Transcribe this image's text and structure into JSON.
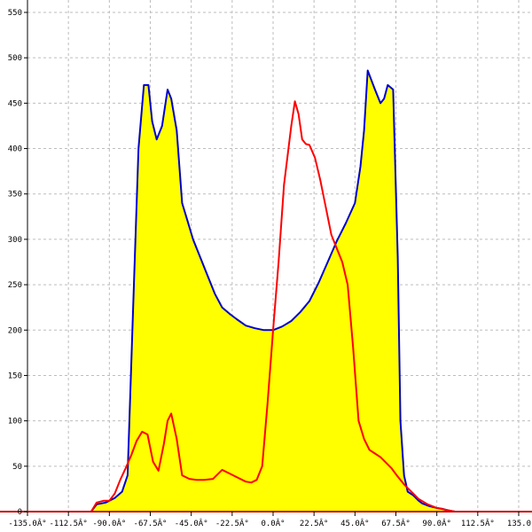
{
  "chart_data": {
    "type": "area",
    "title": "",
    "xlabel": "",
    "ylabel": "",
    "xlim": [
      -135,
      135
    ],
    "ylim": [
      0,
      550
    ],
    "grid": true,
    "x_ticks": [
      -135,
      -112.5,
      -90,
      -67.5,
      -45,
      -22.5,
      0,
      22.5,
      45,
      67.5,
      90,
      112.5,
      135
    ],
    "x_tick_labels": [
      "-135.0Â°",
      "-112.5Â°",
      "-90.0Â°",
      "-67.5Â°",
      "-45.0Â°",
      "-22.5Â°",
      "0.0Â°",
      "22.5Â°",
      "45.0Â°",
      "67.5Â°",
      "90.0Â°",
      "112.5Â°",
      "135.0"
    ],
    "y_ticks": [
      0,
      50,
      100,
      150,
      200,
      250,
      300,
      350,
      400,
      450,
      500,
      550
    ],
    "y_tick_labels": [
      "0",
      "50",
      "100",
      "150",
      "200",
      "250",
      "300",
      "350",
      "400",
      "450",
      "500",
      "550"
    ],
    "series": [
      {
        "color": "#0000cc",
        "fill": "#ffff00",
        "x": [
          -100,
          -97,
          -92,
          -90,
          -87,
          -83,
          -80,
          -77,
          -74,
          -71,
          -68.5,
          -66.5,
          -64,
          -61,
          -58,
          -56,
          -53,
          -50,
          -47,
          -44,
          -40,
          -36,
          -32,
          -28,
          -24,
          -20,
          -15,
          -10,
          -5,
          0,
          5,
          10,
          15,
          20,
          25,
          30,
          35,
          40,
          45,
          48,
          50,
          52,
          56,
          59,
          61,
          63,
          66,
          68.5,
          70,
          72,
          74,
          77,
          80,
          82,
          86,
          90,
          93,
          95,
          97,
          100
        ],
        "y": [
          0,
          8,
          10,
          12,
          15,
          22,
          40,
          220,
          400,
          470,
          470,
          430,
          410,
          425,
          465,
          455,
          420,
          340,
          320,
          300,
          280,
          260,
          240,
          225,
          218,
          212,
          205,
          202,
          200,
          200,
          204,
          210,
          220,
          232,
          252,
          275,
          298,
          318,
          340,
          380,
          420,
          486,
          465,
          450,
          455,
          470,
          465,
          280,
          100,
          40,
          22,
          18,
          12,
          9,
          6,
          4,
          3,
          2,
          1,
          0
        ]
      },
      {
        "color": "#ff0000",
        "x": [
          -100,
          -97,
          -93,
          -90,
          -87,
          -84,
          -81,
          -78,
          -75,
          -72,
          -69,
          -66,
          -63,
          -60,
          -58,
          -56,
          -53,
          -50,
          -46,
          -42,
          -38,
          -33,
          -28,
          -24,
          -20,
          -15,
          -12,
          -9,
          -6,
          -3,
          0,
          3,
          6,
          10,
          12,
          14,
          16,
          18,
          20,
          23,
          26,
          29,
          32,
          35,
          38,
          41,
          44,
          47,
          50,
          53,
          56,
          59,
          62,
          65,
          68,
          72,
          76,
          80,
          85,
          90,
          95,
          100
        ],
        "y": [
          0,
          10,
          12,
          12,
          20,
          35,
          48,
          62,
          78,
          88,
          85,
          55,
          45,
          75,
          100,
          108,
          80,
          40,
          36,
          35,
          35,
          36,
          46,
          42,
          38,
          33,
          32,
          35,
          50,
          120,
          200,
          275,
          360,
          425,
          452,
          438,
          410,
          405,
          404,
          390,
          365,
          335,
          305,
          290,
          275,
          250,
          180,
          100,
          80,
          68,
          64,
          60,
          54,
          48,
          40,
          30,
          22,
          14,
          8,
          4,
          2,
          0
        ]
      }
    ]
  }
}
